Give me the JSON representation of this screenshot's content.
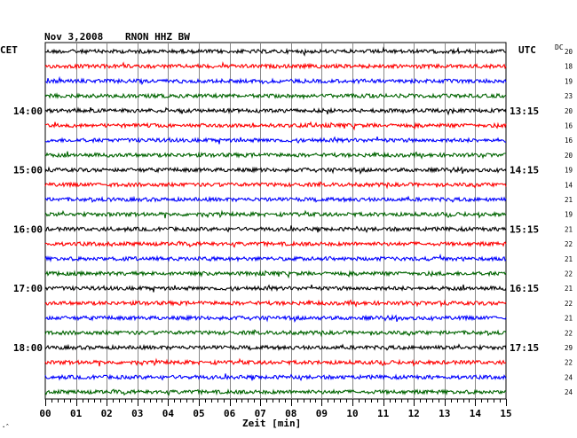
{
  "header": {
    "date": "Nov 3,2008",
    "station": "RNON HHZ BW",
    "left_zone": "CET",
    "right_zone": "UTC",
    "dc_label": "DC"
  },
  "footer": {
    "corner_mark": "·ˆ"
  },
  "chart_data": {
    "type": "line",
    "title": "Nov 3,2008   RNON HHZ BW",
    "xlabel": "Zeit [min]",
    "ylabel": "",
    "xlim": [
      0,
      15
    ],
    "x_ticks": [
      "00",
      "01",
      "02",
      "03",
      "04",
      "05",
      "06",
      "07",
      "08",
      "09",
      "10",
      "11",
      "12",
      "13",
      "14",
      "15"
    ],
    "grid": true,
    "trace_count": 24,
    "trace_colors": [
      "#000000",
      "#ff0000",
      "#0000ff",
      "#006400"
    ],
    "left_time_labels": [
      {
        "trace": 4,
        "label": "14:00"
      },
      {
        "trace": 8,
        "label": "15:00"
      },
      {
        "trace": 12,
        "label": "16:00"
      },
      {
        "trace": 16,
        "label": "17:00"
      },
      {
        "trace": 20,
        "label": "18:00"
      }
    ],
    "right_time_labels": [
      {
        "trace": 4,
        "label": "13:15"
      },
      {
        "trace": 8,
        "label": "14:15"
      },
      {
        "trace": 12,
        "label": "15:15"
      },
      {
        "trace": 16,
        "label": "16:15"
      },
      {
        "trace": 20,
        "label": "17:15"
      }
    ],
    "dc_values": [
      "20",
      "18",
      "19",
      "23",
      "20",
      "16",
      "16",
      "20",
      "19",
      "14",
      "21",
      "19",
      "21",
      "22",
      "21",
      "22",
      "21",
      "22",
      "21",
      "22",
      "29",
      "22",
      "24",
      "24"
    ]
  }
}
